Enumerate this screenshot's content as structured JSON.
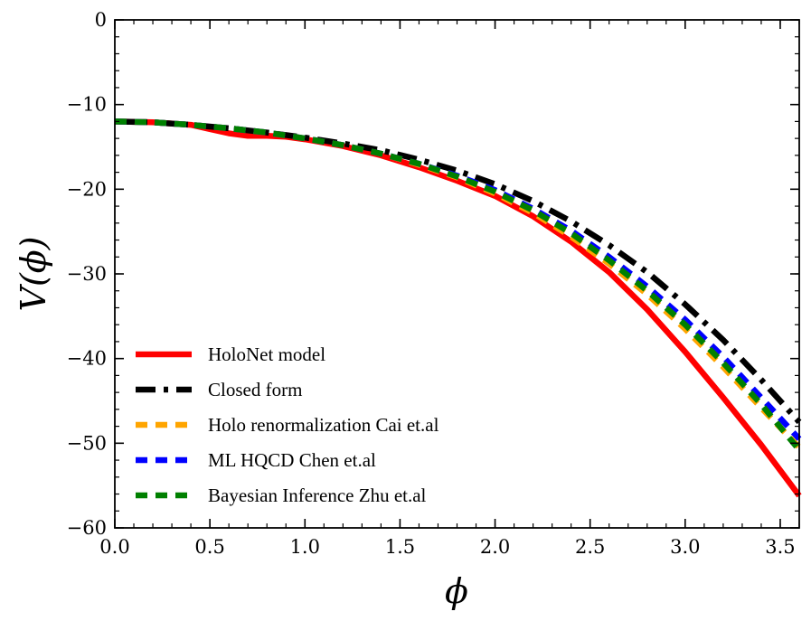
{
  "chart_data": {
    "type": "line",
    "title": "",
    "xlabel": "ϕ",
    "ylabel": "V(ϕ)",
    "xlim": [
      0,
      3.6
    ],
    "ylim": [
      -60,
      0
    ],
    "xticks": [
      0.0,
      0.5,
      1.0,
      1.5,
      2.0,
      2.5,
      3.0,
      3.5
    ],
    "xtick_labels": [
      "0.0",
      "0.5",
      "1.0",
      "1.5",
      "2.0",
      "2.5",
      "3.0",
      "3.5"
    ],
    "yticks": [
      0,
      -10,
      -20,
      -30,
      -40,
      -50,
      -60
    ],
    "ytick_labels": [
      "0",
      "−10",
      "−20",
      "−30",
      "−40",
      "−50",
      "−60"
    ],
    "grid": false,
    "legend_position": "lower-left",
    "series": [
      {
        "name": "HoloNet model",
        "color": "#ff0000",
        "style": "solid",
        "x": [
          0.0,
          0.2,
          0.4,
          0.5,
          0.6,
          0.7,
          0.8,
          0.9,
          1.0,
          1.2,
          1.4,
          1.6,
          1.8,
          2.0,
          2.2,
          2.4,
          2.6,
          2.8,
          3.0,
          3.2,
          3.4,
          3.6
        ],
        "y": [
          -12.0,
          -12.1,
          -12.4,
          -12.9,
          -13.4,
          -13.7,
          -13.7,
          -13.8,
          -14.1,
          -14.9,
          -16.0,
          -17.4,
          -19.0,
          -20.8,
          -23.2,
          -26.2,
          -29.8,
          -34.2,
          -39.2,
          -44.6,
          -50.2,
          -56.2
        ]
      },
      {
        "name": "Closed form",
        "color": "#000000",
        "style": "dashdot",
        "x": [
          0.0,
          0.2,
          0.4,
          0.6,
          0.8,
          1.0,
          1.2,
          1.4,
          1.6,
          1.8,
          2.0,
          2.2,
          2.4,
          2.6,
          2.8,
          3.0,
          3.2,
          3.4,
          3.6
        ],
        "y": [
          -12.0,
          -12.1,
          -12.4,
          -12.8,
          -13.3,
          -13.9,
          -14.6,
          -15.4,
          -16.5,
          -17.8,
          -19.4,
          -21.4,
          -23.8,
          -26.6,
          -29.8,
          -33.6,
          -37.8,
          -42.5,
          -47.5
        ]
      },
      {
        "name": "Holo renormalization Cai et.al",
        "color": "#ffa500",
        "style": "dashed",
        "x": [
          0.0,
          0.2,
          0.4,
          0.6,
          0.8,
          1.0,
          1.2,
          1.4,
          1.6,
          1.8,
          2.0,
          2.2,
          2.4,
          2.6,
          2.8,
          3.0,
          3.2,
          3.4,
          3.6
        ],
        "y": [
          -12.0,
          -12.1,
          -12.4,
          -12.8,
          -13.3,
          -14.0,
          -14.8,
          -15.8,
          -17.1,
          -18.6,
          -20.5,
          -22.8,
          -25.6,
          -28.8,
          -32.4,
          -36.5,
          -41.0,
          -45.8,
          -50.5
        ]
      },
      {
        "name": "ML HQCD Chen et.al",
        "color": "#0000ff",
        "style": "dashed",
        "x": [
          0.0,
          0.2,
          0.4,
          0.6,
          0.8,
          1.0,
          1.2,
          1.4,
          1.6,
          1.8,
          2.0,
          2.2,
          2.4,
          2.6,
          2.8,
          3.0,
          3.2,
          3.4,
          3.6
        ],
        "y": [
          -12.0,
          -12.1,
          -12.4,
          -12.8,
          -13.3,
          -14.0,
          -14.8,
          -15.8,
          -17.0,
          -18.4,
          -20.1,
          -22.3,
          -24.9,
          -28.0,
          -31.5,
          -35.4,
          -39.8,
          -44.6,
          -49.5
        ]
      },
      {
        "name": "Bayesian Inference Zhu et.al",
        "color": "#008000",
        "style": "dashed",
        "x": [
          0.0,
          0.2,
          0.4,
          0.6,
          0.8,
          1.0,
          1.2,
          1.4,
          1.6,
          1.8,
          2.0,
          2.2,
          2.4,
          2.6,
          2.8,
          3.0,
          3.2,
          3.4,
          3.6
        ],
        "y": [
          -12.0,
          -12.1,
          -12.4,
          -12.8,
          -13.3,
          -14.0,
          -14.8,
          -15.8,
          -17.0,
          -18.5,
          -20.3,
          -22.5,
          -25.2,
          -28.4,
          -32.0,
          -36.0,
          -40.5,
          -45.4,
          -50.8
        ]
      }
    ]
  }
}
